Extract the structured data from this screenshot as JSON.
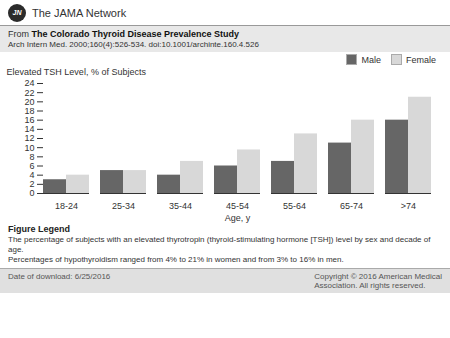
{
  "chart_data": {
    "type": "bar",
    "title": "The Colorado Thyroid Disease Prevalence Study",
    "subtitle": "Arch Intern Med. 2000;160(4):526-534. doi:10.1001/archinte.160.4.526",
    "annotations": [
      "JN",
      "The JAMA Network",
      "From",
      "Figure Legend",
      "The percentage of subjects with an elevated thyrotropin (thyroid-stimulating hormone [TSH]) level by sex and decade of age.",
      "Percentages of hypothyroidism ranged from 4% to 21% in women and from 3% to 16% in men.",
      "Date of download: 6/25/2016",
      "Copyright © 2016 American Medical\nAssociation. All rights reserved."
    ],
    "xlabel": "Age, y",
    "ylabel": "Elevated TSH Level, % of Subjects",
    "categories": [
      "18-24",
      "25-34",
      "35-44",
      "45-54",
      "55-64",
      "65-74",
      ">74"
    ],
    "series": [
      {
        "name": "Male",
        "color": "#666666",
        "values": [
          3,
          5,
          4,
          6,
          7,
          11,
          16
        ]
      },
      {
        "name": "Female",
        "color": "#d8d8d8",
        "values": [
          4,
          5,
          7,
          9.5,
          13,
          16,
          21
        ]
      }
    ],
    "ylim": [
      0,
      24
    ],
    "yticks": [
      0,
      2,
      4,
      6,
      8,
      10,
      12,
      14,
      16,
      18,
      20,
      22,
      24
    ],
    "grid": false,
    "legend": "upper right"
  }
}
